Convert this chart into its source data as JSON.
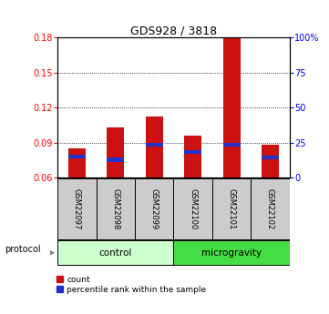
{
  "title": "GDS928 / 3818",
  "samples": [
    "GSM22097",
    "GSM22098",
    "GSM22099",
    "GSM22100",
    "GSM22101",
    "GSM22102"
  ],
  "count_values": [
    0.085,
    0.103,
    0.112,
    0.096,
    0.18,
    0.088
  ],
  "percentile_values": [
    0.078,
    0.075,
    0.088,
    0.082,
    0.088,
    0.077
  ],
  "ymin": 0.06,
  "ymax": 0.18,
  "yticks_left": [
    0.06,
    0.09,
    0.12,
    0.15,
    0.18
  ],
  "yticks_right": [
    0,
    25,
    50,
    75,
    100
  ],
  "bar_color": "#cc1111",
  "percentile_color": "#2233cc",
  "control_bg": "#ccffcc",
  "microgravity_bg": "#44dd44",
  "sample_box_bg": "#cccccc",
  "legend_count_label": "count",
  "legend_percentile_label": "percentile rank within the sample",
  "protocol_label": "protocol"
}
